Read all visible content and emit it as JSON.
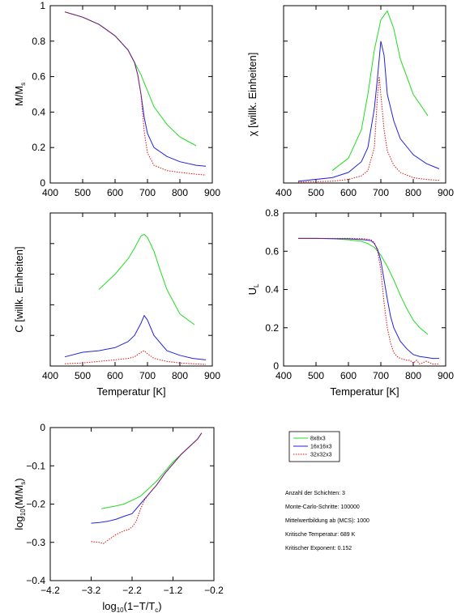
{
  "colors": {
    "green": "#22dd22",
    "blue": "#2222dd",
    "red": "#dd1111",
    "axis": "#000000"
  },
  "legend": [
    {
      "label": "8x8x3",
      "color": "#22dd22",
      "dash": ""
    },
    {
      "label": "16x16x3",
      "color": "#2222dd",
      "dash": ""
    },
    {
      "label": "32x32x3",
      "color": "#dd1111",
      "dash": "1.5,1.5"
    }
  ],
  "info_lines": [
    "Anzahl der Schichten: 3",
    "Monte-Carlo-Schritte: 100000",
    "Mittelwertbildung ab (MCS): 1000",
    "Kritische Temperatur: 689 K",
    "Kritischer Exponent: 0.152"
  ],
  "chart_data": [
    {
      "id": "mag",
      "type": "line",
      "ylabel": "M/M_s",
      "xlabel": "",
      "xlim": [
        400,
        900
      ],
      "ylim": [
        0,
        1
      ],
      "xticks": [
        400,
        500,
        600,
        700,
        800,
        900
      ],
      "yticks": [
        0,
        0.2,
        0.4,
        0.6,
        0.8,
        1
      ],
      "ytick_labels": [
        "0",
        "0.2",
        "0.4",
        "0.6",
        "0.8",
        "1"
      ],
      "series": [
        {
          "name": "8x8x3",
          "x": [
            445,
            500,
            550,
            600,
            640,
            660,
            680,
            700,
            720,
            760,
            800,
            850
          ],
          "y": [
            0.965,
            0.935,
            0.895,
            0.83,
            0.75,
            0.68,
            0.61,
            0.52,
            0.43,
            0.33,
            0.26,
            0.21
          ]
        },
        {
          "name": "16x16x3",
          "x": [
            445,
            500,
            550,
            600,
            640,
            660,
            670,
            680,
            690,
            700,
            720,
            760,
            800,
            850,
            880
          ],
          "y": [
            0.965,
            0.935,
            0.895,
            0.83,
            0.75,
            0.68,
            0.61,
            0.5,
            0.37,
            0.28,
            0.2,
            0.15,
            0.12,
            0.1,
            0.095
          ]
        },
        {
          "name": "32x32x3",
          "x": [
            445,
            500,
            550,
            600,
            640,
            660,
            670,
            680,
            690,
            700,
            720,
            760,
            800,
            850,
            880
          ],
          "y": [
            0.965,
            0.935,
            0.895,
            0.83,
            0.75,
            0.68,
            0.61,
            0.5,
            0.29,
            0.17,
            0.1,
            0.07,
            0.06,
            0.05,
            0.045
          ]
        }
      ]
    },
    {
      "id": "chi",
      "type": "line",
      "ylabel": "χ [willk. Einheiten]",
      "xlabel": "",
      "xlim": [
        400,
        900
      ],
      "ylim": [
        0,
        1
      ],
      "xticks": [
        400,
        500,
        600,
        700,
        800,
        900
      ],
      "yticks": [
        0,
        0.2,
        0.4,
        0.6,
        0.8,
        1
      ],
      "ytick_labels": [
        "",
        "",
        "",
        "",
        "",
        ""
      ],
      "series": [
        {
          "name": "8x8x3",
          "x": [
            550,
            600,
            640,
            660,
            680,
            700,
            720,
            740,
            760,
            800,
            845
          ],
          "y": [
            0.07,
            0.14,
            0.3,
            0.5,
            0.75,
            0.92,
            0.97,
            0.87,
            0.7,
            0.5,
            0.38
          ]
        },
        {
          "name": "16x16x3",
          "x": [
            445,
            550,
            600,
            640,
            660,
            680,
            690,
            700,
            710,
            720,
            740,
            760,
            800,
            840,
            880
          ],
          "y": [
            0.01,
            0.03,
            0.06,
            0.12,
            0.2,
            0.42,
            0.6,
            0.8,
            0.72,
            0.5,
            0.35,
            0.25,
            0.16,
            0.11,
            0.08
          ]
        },
        {
          "name": "32x32x3",
          "x": [
            445,
            550,
            600,
            640,
            660,
            680,
            690,
            695,
            700,
            710,
            720,
            740,
            760,
            800,
            840,
            880
          ],
          "y": [
            0.005,
            0.01,
            0.02,
            0.04,
            0.07,
            0.2,
            0.5,
            0.6,
            0.5,
            0.3,
            0.18,
            0.1,
            0.06,
            0.03,
            0.02,
            0.015
          ]
        }
      ]
    },
    {
      "id": "heat",
      "type": "line",
      "ylabel": "C [willk. Einheiten]",
      "xlabel": "Temperatur [K]",
      "xlim": [
        400,
        900
      ],
      "ylim": [
        0,
        1
      ],
      "xticks": [
        400,
        500,
        600,
        700,
        800,
        900
      ],
      "yticks": [
        0,
        0.2,
        0.4,
        0.6,
        0.8,
        1
      ],
      "ytick_labels": [
        "",
        "",
        "",
        "",
        "",
        ""
      ],
      "series": [
        {
          "name": "8x8x3",
          "x": [
            550,
            600,
            640,
            660,
            680,
            690,
            700,
            720,
            740,
            760,
            800,
            845
          ],
          "y": [
            0.5,
            0.6,
            0.7,
            0.77,
            0.85,
            0.86,
            0.84,
            0.75,
            0.62,
            0.5,
            0.34,
            0.27
          ]
        },
        {
          "name": "16x16x3",
          "x": [
            445,
            500,
            550,
            600,
            640,
            660,
            680,
            690,
            700,
            720,
            760,
            800,
            840,
            880
          ],
          "y": [
            0.06,
            0.09,
            0.1,
            0.12,
            0.16,
            0.2,
            0.28,
            0.33,
            0.3,
            0.2,
            0.1,
            0.07,
            0.05,
            0.04
          ]
        },
        {
          "name": "32x32x3",
          "x": [
            445,
            500,
            550,
            600,
            640,
            660,
            680,
            690,
            700,
            720,
            760,
            800,
            840,
            880
          ],
          "y": [
            0.015,
            0.02,
            0.03,
            0.04,
            0.05,
            0.06,
            0.09,
            0.1,
            0.08,
            0.05,
            0.03,
            0.02,
            0.015,
            0.01
          ]
        }
      ]
    },
    {
      "id": "binder",
      "type": "line",
      "ylabel": "U_L",
      "xlabel": "Temperatur [K]",
      "xlim": [
        400,
        900
      ],
      "ylim": [
        0,
        0.8
      ],
      "xticks": [
        400,
        500,
        600,
        700,
        800,
        900
      ],
      "yticks": [
        0,
        0.2,
        0.4,
        0.6,
        0.8
      ],
      "ytick_labels": [
        "0",
        "0.2",
        "0.4",
        "0.6",
        "0.8"
      ],
      "series": [
        {
          "name": "8x8x3",
          "x": [
            445,
            500,
            550,
            600,
            640,
            660,
            680,
            700,
            720,
            740,
            760,
            780,
            800,
            820,
            845
          ],
          "y": [
            0.667,
            0.667,
            0.666,
            0.66,
            0.652,
            0.64,
            0.62,
            0.58,
            0.52,
            0.45,
            0.37,
            0.3,
            0.24,
            0.2,
            0.165
          ]
        },
        {
          "name": "16x16x3",
          "x": [
            445,
            500,
            550,
            600,
            650,
            670,
            680,
            690,
            700,
            710,
            720,
            730,
            740,
            760,
            780,
            800,
            820,
            840,
            860,
            880
          ],
          "y": [
            0.667,
            0.667,
            0.666,
            0.665,
            0.66,
            0.655,
            0.64,
            0.61,
            0.55,
            0.45,
            0.35,
            0.26,
            0.2,
            0.13,
            0.09,
            0.06,
            0.05,
            0.045,
            0.04,
            0.04
          ]
        },
        {
          "name": "32x32x3",
          "x": [
            445,
            500,
            550,
            600,
            650,
            670,
            680,
            690,
            700,
            710,
            720,
            730,
            740,
            750,
            760,
            780,
            790,
            800,
            810,
            820,
            840,
            860,
            880
          ],
          "y": [
            0.667,
            0.667,
            0.667,
            0.667,
            0.665,
            0.66,
            0.645,
            0.6,
            0.5,
            0.33,
            0.2,
            0.12,
            0.07,
            0.05,
            0.04,
            0.03,
            0.03,
            0.015,
            0.03,
            0.01,
            0.025,
            0.01,
            0.01
          ]
        }
      ]
    },
    {
      "id": "loglog",
      "type": "line",
      "ylabel": "log10(M/M_s)",
      "xlabel": "log10(1−T/Tc)",
      "xlim": [
        -4.2,
        -0.2
      ],
      "ylim": [
        -0.4,
        0
      ],
      "xticks": [
        -4.2,
        -3.2,
        -2.2,
        -1.2,
        -0.2
      ],
      "xtick_labels": [
        "−4.2",
        "−3.2",
        "−2.2",
        "−1.2",
        "−0.2"
      ],
      "yticks": [
        -0.4,
        -0.3,
        -0.2,
        -0.1,
        0
      ],
      "ytick_labels": [
        "−0.4",
        "−0.3",
        "−0.2",
        "−0.1",
        "0"
      ],
      "series": [
        {
          "name": "8x8x3",
          "x": [
            -2.95,
            -2.8,
            -2.6,
            -2.4,
            -2.2,
            -2.0,
            -1.8,
            -1.6,
            -1.4,
            -1.2,
            -1.0,
            -0.8,
            -0.6,
            -0.5
          ],
          "y": [
            -0.212,
            -0.209,
            -0.205,
            -0.2,
            -0.19,
            -0.18,
            -0.16,
            -0.14,
            -0.115,
            -0.09,
            -0.07,
            -0.05,
            -0.03,
            -0.014
          ]
        },
        {
          "name": "16x16x3",
          "x": [
            -3.2,
            -3.0,
            -2.8,
            -2.6,
            -2.4,
            -2.2,
            -2.0,
            -1.8,
            -1.6,
            -1.4,
            -1.2,
            -1.0,
            -0.8,
            -0.6,
            -0.5
          ],
          "y": [
            -0.25,
            -0.248,
            -0.245,
            -0.24,
            -0.232,
            -0.225,
            -0.2,
            -0.175,
            -0.15,
            -0.12,
            -0.095,
            -0.07,
            -0.05,
            -0.03,
            -0.014
          ]
        },
        {
          "name": "32x32x3",
          "x": [
            -3.2,
            -3.0,
            -2.9,
            -2.8,
            -2.6,
            -2.4,
            -2.3,
            -2.2,
            -2.1,
            -2.0,
            -1.9,
            -1.8,
            -1.6,
            -1.4,
            -1.2,
            -1.0,
            -0.8,
            -0.6,
            -0.5
          ],
          "y": [
            -0.298,
            -0.3,
            -0.303,
            -0.295,
            -0.28,
            -0.27,
            -0.267,
            -0.26,
            -0.245,
            -0.215,
            -0.19,
            -0.175,
            -0.15,
            -0.12,
            -0.095,
            -0.07,
            -0.05,
            -0.03,
            -0.014
          ]
        }
      ]
    }
  ]
}
